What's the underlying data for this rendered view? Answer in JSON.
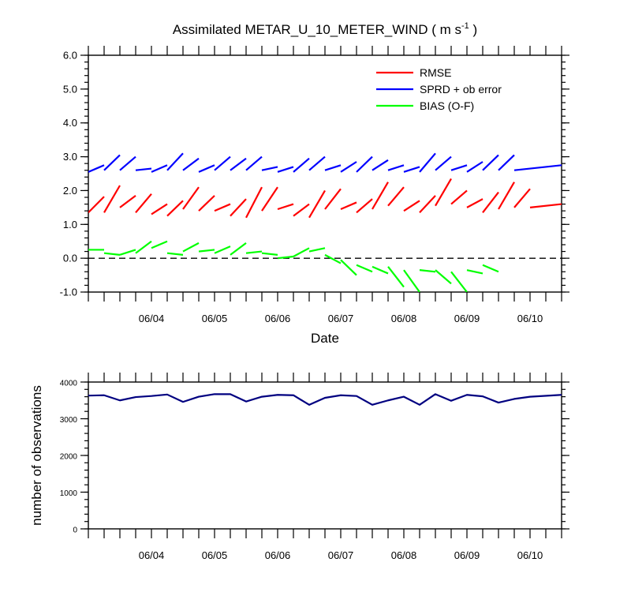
{
  "figure": {
    "title": "Assimilated METAR_U_10_METER_WIND ( m s",
    "title_sup": "-1",
    "title_end": " )"
  },
  "chart_data": [
    {
      "type": "line",
      "title": "Assimilated METAR_U_10_METER_WIND ( m s-1 )",
      "xlabel": "Date",
      "ylabel": "",
      "x_ticks": [
        "06/04",
        "06/05",
        "06/06",
        "06/07",
        "06/08",
        "06/09",
        "06/10"
      ],
      "y_ticks": [
        "6.0",
        "5.0",
        "4.0",
        "3.0",
        "2.0",
        "1.0",
        "0.0",
        "-1.0"
      ],
      "xlim": [
        0,
        7.5
      ],
      "ylim": [
        -1,
        6
      ],
      "zero_line": true,
      "legend_position": "top-right",
      "grid": false,
      "series": [
        {
          "name": "RMSE",
          "color": "#ff0000",
          "segments": [
            {
              "x": [
                0.0,
                0.25
              ],
              "y": [
                1.35,
                1.82
              ]
            },
            {
              "x": [
                0.25,
                0.5
              ],
              "y": [
                1.35,
                2.15
              ]
            },
            {
              "x": [
                0.5,
                0.75
              ],
              "y": [
                1.5,
                1.85
              ]
            },
            {
              "x": [
                0.75,
                1.0
              ],
              "y": [
                1.35,
                1.9
              ]
            },
            {
              "x": [
                1.0,
                1.25
              ],
              "y": [
                1.3,
                1.6
              ]
            },
            {
              "x": [
                1.25,
                1.5
              ],
              "y": [
                1.25,
                1.7
              ]
            },
            {
              "x": [
                1.5,
                1.75
              ],
              "y": [
                1.45,
                2.1
              ]
            },
            {
              "x": [
                1.75,
                2.0
              ],
              "y": [
                1.4,
                1.85
              ]
            },
            {
              "x": [
                2.0,
                2.25
              ],
              "y": [
                1.4,
                1.6
              ]
            },
            {
              "x": [
                2.25,
                2.5
              ],
              "y": [
                1.25,
                1.75
              ]
            },
            {
              "x": [
                2.5,
                2.75
              ],
              "y": [
                1.2,
                2.1
              ]
            },
            {
              "x": [
                2.75,
                3.0
              ],
              "y": [
                1.4,
                2.1
              ]
            },
            {
              "x": [
                3.0,
                3.25
              ],
              "y": [
                1.45,
                1.6
              ]
            },
            {
              "x": [
                3.25,
                3.5
              ],
              "y": [
                1.25,
                1.6
              ]
            },
            {
              "x": [
                3.5,
                3.75
              ],
              "y": [
                1.2,
                2.0
              ]
            },
            {
              "x": [
                3.75,
                4.0
              ],
              "y": [
                1.45,
                2.05
              ]
            },
            {
              "x": [
                4.0,
                4.25
              ],
              "y": [
                1.45,
                1.65
              ]
            },
            {
              "x": [
                4.25,
                4.5
              ],
              "y": [
                1.35,
                1.75
              ]
            },
            {
              "x": [
                4.5,
                4.75
              ],
              "y": [
                1.45,
                2.25
              ]
            },
            {
              "x": [
                4.75,
                5.0
              ],
              "y": [
                1.55,
                2.1
              ]
            },
            {
              "x": [
                5.0,
                5.25
              ],
              "y": [
                1.4,
                1.7
              ]
            },
            {
              "x": [
                5.25,
                5.5
              ],
              "y": [
                1.35,
                1.85
              ]
            },
            {
              "x": [
                5.5,
                5.75
              ],
              "y": [
                1.55,
                2.35
              ]
            },
            {
              "x": [
                5.75,
                6.0
              ],
              "y": [
                1.6,
                2.0
              ]
            },
            {
              "x": [
                6.0,
                6.25
              ],
              "y": [
                1.5,
                1.75
              ]
            },
            {
              "x": [
                6.25,
                6.5
              ],
              "y": [
                1.35,
                1.95
              ]
            },
            {
              "x": [
                6.5,
                6.75
              ],
              "y": [
                1.45,
                2.25
              ]
            },
            {
              "x": [
                6.75,
                7.0
              ],
              "y": [
                1.5,
                2.05
              ]
            },
            {
              "x": [
                7.0,
                7.5
              ],
              "y": [
                1.5,
                1.6
              ]
            }
          ]
        },
        {
          "name": "SPRD + ob error",
          "color": "#0000ff",
          "segments": [
            {
              "x": [
                0.0,
                0.25
              ],
              "y": [
                2.55,
                2.75
              ]
            },
            {
              "x": [
                0.25,
                0.5
              ],
              "y": [
                2.6,
                3.05
              ]
            },
            {
              "x": [
                0.5,
                0.75
              ],
              "y": [
                2.6,
                3.0
              ]
            },
            {
              "x": [
                0.75,
                1.0
              ],
              "y": [
                2.6,
                2.65
              ]
            },
            {
              "x": [
                1.0,
                1.25
              ],
              "y": [
                2.55,
                2.75
              ]
            },
            {
              "x": [
                1.25,
                1.5
              ],
              "y": [
                2.6,
                3.1
              ]
            },
            {
              "x": [
                1.5,
                1.75
              ],
              "y": [
                2.6,
                2.95
              ]
            },
            {
              "x": [
                1.75,
                2.0
              ],
              "y": [
                2.55,
                2.75
              ]
            },
            {
              "x": [
                2.0,
                2.25
              ],
              "y": [
                2.6,
                3.0
              ]
            },
            {
              "x": [
                2.25,
                2.5
              ],
              "y": [
                2.6,
                2.95
              ]
            },
            {
              "x": [
                2.5,
                2.75
              ],
              "y": [
                2.6,
                3.0
              ]
            },
            {
              "x": [
                2.75,
                3.0
              ],
              "y": [
                2.6,
                2.7
              ]
            },
            {
              "x": [
                3.0,
                3.25
              ],
              "y": [
                2.55,
                2.7
              ]
            },
            {
              "x": [
                3.25,
                3.5
              ],
              "y": [
                2.55,
                2.95
              ]
            },
            {
              "x": [
                3.5,
                3.75
              ],
              "y": [
                2.6,
                3.0
              ]
            },
            {
              "x": [
                3.75,
                4.0
              ],
              "y": [
                2.6,
                2.75
              ]
            },
            {
              "x": [
                4.0,
                4.25
              ],
              "y": [
                2.55,
                2.85
              ]
            },
            {
              "x": [
                4.25,
                4.5
              ],
              "y": [
                2.55,
                3.0
              ]
            },
            {
              "x": [
                4.5,
                4.75
              ],
              "y": [
                2.6,
                2.9
              ]
            },
            {
              "x": [
                4.75,
                5.0
              ],
              "y": [
                2.6,
                2.75
              ]
            },
            {
              "x": [
                5.0,
                5.25
              ],
              "y": [
                2.55,
                2.7
              ]
            },
            {
              "x": [
                5.25,
                5.5
              ],
              "y": [
                2.55,
                3.1
              ]
            },
            {
              "x": [
                5.5,
                5.75
              ],
              "y": [
                2.6,
                3.0
              ]
            },
            {
              "x": [
                5.75,
                6.0
              ],
              "y": [
                2.6,
                2.75
              ]
            },
            {
              "x": [
                6.0,
                6.25
              ],
              "y": [
                2.55,
                2.85
              ]
            },
            {
              "x": [
                6.25,
                6.5
              ],
              "y": [
                2.6,
                3.05
              ]
            },
            {
              "x": [
                6.5,
                6.75
              ],
              "y": [
                2.6,
                3.05
              ]
            },
            {
              "x": [
                6.75,
                7.5
              ],
              "y": [
                2.6,
                2.75
              ]
            }
          ]
        },
        {
          "name": "BIAS (O-F)",
          "color": "#00ff00",
          "segments": [
            {
              "x": [
                0.0,
                0.25
              ],
              "y": [
                0.25,
                0.25
              ]
            },
            {
              "x": [
                0.25,
                0.5
              ],
              "y": [
                0.15,
                0.1
              ]
            },
            {
              "x": [
                0.5,
                0.75
              ],
              "y": [
                0.1,
                0.25
              ]
            },
            {
              "x": [
                0.75,
                1.0
              ],
              "y": [
                0.15,
                0.5
              ]
            },
            {
              "x": [
                1.0,
                1.25
              ],
              "y": [
                0.3,
                0.5
              ]
            },
            {
              "x": [
                1.25,
                1.5
              ],
              "y": [
                0.15,
                0.1
              ]
            },
            {
              "x": [
                1.5,
                1.75
              ],
              "y": [
                0.2,
                0.45
              ]
            },
            {
              "x": [
                1.75,
                2.0
              ],
              "y": [
                0.2,
                0.25
              ]
            },
            {
              "x": [
                2.0,
                2.25
              ],
              "y": [
                0.15,
                0.35
              ]
            },
            {
              "x": [
                2.25,
                2.5
              ],
              "y": [
                0.1,
                0.45
              ]
            },
            {
              "x": [
                2.5,
                2.75
              ],
              "y": [
                0.15,
                0.2
              ]
            },
            {
              "x": [
                2.75,
                3.0
              ],
              "y": [
                0.15,
                0.1
              ]
            },
            {
              "x": [
                3.0,
                3.25
              ],
              "y": [
                0.0,
                0.05
              ]
            },
            {
              "x": [
                3.25,
                3.5
              ],
              "y": [
                0.05,
                0.3
              ]
            },
            {
              "x": [
                3.5,
                3.75
              ],
              "y": [
                0.2,
                0.3
              ]
            },
            {
              "x": [
                3.75,
                4.0
              ],
              "y": [
                0.1,
                -0.15
              ]
            },
            {
              "x": [
                4.0,
                4.25
              ],
              "y": [
                -0.05,
                -0.5
              ]
            },
            {
              "x": [
                4.25,
                4.5
              ],
              "y": [
                -0.2,
                -0.4
              ]
            },
            {
              "x": [
                4.5,
                4.75
              ],
              "y": [
                -0.25,
                -0.45
              ]
            },
            {
              "x": [
                4.75,
                5.0
              ],
              "y": [
                -0.25,
                -0.85
              ]
            },
            {
              "x": [
                5.0,
                5.25
              ],
              "y": [
                -0.35,
                -1.0
              ]
            },
            {
              "x": [
                5.25,
                5.5
              ],
              "y": [
                -0.35,
                -0.4
              ]
            },
            {
              "x": [
                5.5,
                5.75
              ],
              "y": [
                -0.35,
                -0.75
              ]
            },
            {
              "x": [
                5.75,
                6.0
              ],
              "y": [
                -0.4,
                -1.0
              ]
            },
            {
              "x": [
                6.0,
                6.25
              ],
              "y": [
                -0.35,
                -0.45
              ]
            },
            {
              "x": [
                6.25,
                6.5
              ],
              "y": [
                -0.2,
                -0.4
              ]
            }
          ]
        }
      ]
    },
    {
      "type": "line",
      "title": "",
      "xlabel": "",
      "ylabel": "number of observations",
      "x_ticks": [
        "06/04",
        "06/05",
        "06/06",
        "06/07",
        "06/08",
        "06/09",
        "06/10"
      ],
      "y_ticks": [
        "4000",
        "3000",
        "2000",
        "1000",
        "0"
      ],
      "xlim": [
        0,
        7.5
      ],
      "ylim": [
        0,
        4000
      ],
      "grid": false,
      "series": [
        {
          "name": "",
          "color": "#000080",
          "x": [
            0.0,
            0.25,
            0.5,
            0.75,
            1.0,
            1.25,
            1.5,
            1.75,
            2.0,
            2.25,
            2.5,
            2.75,
            3.0,
            3.25,
            3.5,
            3.75,
            4.0,
            4.25,
            4.5,
            4.75,
            5.0,
            5.25,
            5.5,
            5.75,
            6.0,
            6.25,
            6.5,
            6.75,
            7.0,
            7.5
          ],
          "y": [
            3630,
            3640,
            3500,
            3590,
            3620,
            3660,
            3460,
            3600,
            3670,
            3670,
            3470,
            3600,
            3650,
            3640,
            3380,
            3570,
            3640,
            3620,
            3380,
            3500,
            3600,
            3380,
            3670,
            3490,
            3650,
            3610,
            3440,
            3540,
            3600,
            3650
          ]
        }
      ]
    }
  ]
}
